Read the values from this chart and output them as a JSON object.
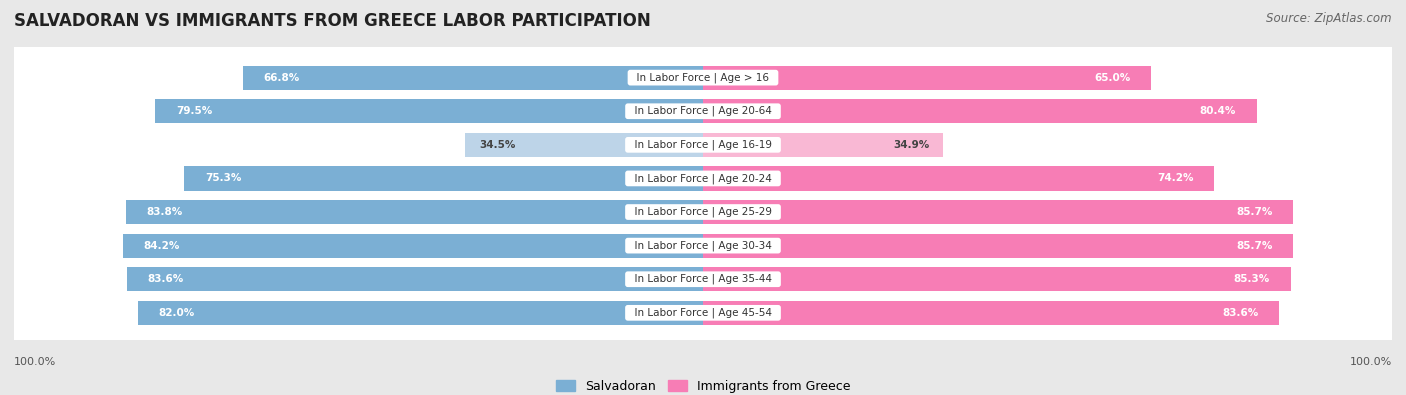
{
  "title": "SALVADORAN VS IMMIGRANTS FROM GREECE LABOR PARTICIPATION",
  "source": "Source: ZipAtlas.com",
  "categories": [
    "In Labor Force | Age > 16",
    "In Labor Force | Age 20-64",
    "In Labor Force | Age 16-19",
    "In Labor Force | Age 20-24",
    "In Labor Force | Age 25-29",
    "In Labor Force | Age 30-34",
    "In Labor Force | Age 35-44",
    "In Labor Force | Age 45-54"
  ],
  "salvadoran_values": [
    66.8,
    79.5,
    34.5,
    75.3,
    83.8,
    84.2,
    83.6,
    82.0
  ],
  "greece_values": [
    65.0,
    80.4,
    34.9,
    74.2,
    85.7,
    85.7,
    85.3,
    83.6
  ],
  "salvadoran_color": "#7bafd4",
  "salvadoran_color_light": "#bdd4e8",
  "greece_color": "#f77db5",
  "greece_color_light": "#f9b8d4",
  "bg_color": "#e8e8e8",
  "row_bg_color": "#ffffff",
  "max_value": 100.0,
  "legend_salvadoran": "Salvadoran",
  "legend_greece": "Immigrants from Greece",
  "title_fontsize": 12,
  "source_fontsize": 8.5,
  "label_fontsize": 7.5,
  "bar_label_fontsize": 7.5,
  "bottom_label": "100.0%"
}
